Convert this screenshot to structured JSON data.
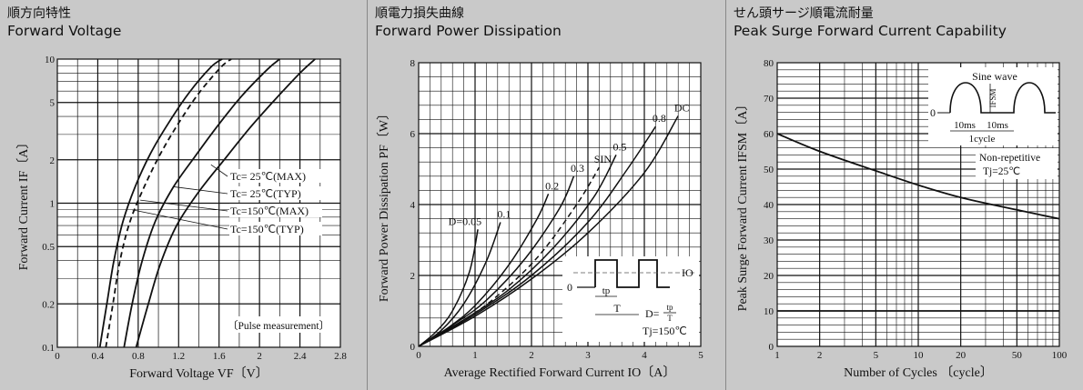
{
  "panels": [
    {
      "title_jp": "順方向特性",
      "title_en": "Forward Voltage"
    },
    {
      "title_jp": "順電力損失曲線",
      "title_en": "Forward Power Dissipation"
    },
    {
      "title_jp": "せん頭サージ順電流耐量",
      "title_en": "Peak Surge Forward Current Capability"
    }
  ],
  "chart_data": [
    {
      "type": "line",
      "title": "Forward Voltage",
      "xlabel": "Forward Voltage  VF〔V〕",
      "ylabel": "Forward Current  IF〔A〕",
      "xlim": [
        0,
        2.8
      ],
      "ylim": [
        0.1,
        10
      ],
      "yscale": "log",
      "xticks": [
        "0",
        "0.4",
        "0.8",
        "1.2",
        "1.6",
        "2",
        "2.4",
        "2.8"
      ],
      "yticks": [
        "0.1",
        "0.2",
        "0.5",
        "1",
        "2",
        "5",
        "10"
      ],
      "annotation": "〔Pulse measurement〕",
      "series": [
        {
          "name": "Tc= 25℃(MAX)",
          "dash": false,
          "points": [
            [
              0.78,
              0.1
            ],
            [
              0.9,
              0.2
            ],
            [
              1.02,
              0.38
            ],
            [
              1.18,
              0.7
            ],
            [
              1.4,
              1.2
            ],
            [
              1.65,
              2
            ],
            [
              1.9,
              3.3
            ],
            [
              2.15,
              5.2
            ],
            [
              2.4,
              8
            ],
            [
              2.55,
              10
            ]
          ]
        },
        {
          "name": "Tc= 25℃(TYP)",
          "dash": false,
          "points": [
            [
              0.66,
              0.1
            ],
            [
              0.74,
              0.2
            ],
            [
              0.84,
              0.4
            ],
            [
              0.97,
              0.75
            ],
            [
              1.15,
              1.3
            ],
            [
              1.36,
              2.1
            ],
            [
              1.58,
              3.4
            ],
            [
              1.82,
              5.5
            ],
            [
              2.08,
              8.5
            ],
            [
              2.2,
              10
            ]
          ]
        },
        {
          "name": "Tc=150℃(MAX)",
          "dash": true,
          "points": [
            [
              0.48,
              0.1
            ],
            [
              0.55,
              0.2
            ],
            [
              0.62,
              0.4
            ],
            [
              0.72,
              0.75
            ],
            [
              0.86,
              1.3
            ],
            [
              1.02,
              2.2
            ],
            [
              1.2,
              3.6
            ],
            [
              1.4,
              5.8
            ],
            [
              1.62,
              8.8
            ],
            [
              1.72,
              10
            ]
          ]
        },
        {
          "name": "Tc=150℃(TYP)",
          "dash": false,
          "points": [
            [
              0.42,
              0.1
            ],
            [
              0.49,
              0.2
            ],
            [
              0.56,
              0.4
            ],
            [
              0.65,
              0.75
            ],
            [
              0.77,
              1.3
            ],
            [
              0.92,
              2.2
            ],
            [
              1.1,
              3.6
            ],
            [
              1.3,
              5.8
            ],
            [
              1.52,
              8.8
            ],
            [
              1.63,
              10
            ]
          ]
        }
      ]
    },
    {
      "type": "line",
      "title": "Forward Power Dissipation",
      "xlabel": "Average Rectified Forward Current  IO〔A〕",
      "ylabel": "Forward Power Dissipation  PF〔W〕",
      "xlim": [
        0,
        5
      ],
      "ylim": [
        0,
        8
      ],
      "xticks": [
        "0",
        "1",
        "2",
        "3",
        "4",
        "5"
      ],
      "yticks": [
        "0",
        "2",
        "4",
        "6",
        "8"
      ],
      "inset": {
        "io_label": "IO",
        "zero_label": "0",
        "tp_label": "tp",
        "T_label": "T",
        "d_label": "D=",
        "d_num": "tp",
        "d_den": "T",
        "tj_label": "Tj=150℃"
      },
      "series": [
        {
          "name": "D=0.05",
          "dash": false,
          "points": [
            [
              0,
              0
            ],
            [
              0.3,
              0.4
            ],
            [
              0.6,
              1
            ],
            [
              0.9,
              2.1
            ],
            [
              1.05,
              3.3
            ]
          ]
        },
        {
          "name": "0.1",
          "dash": false,
          "points": [
            [
              0,
              0
            ],
            [
              0.4,
              0.45
            ],
            [
              0.8,
              1.2
            ],
            [
              1.2,
              2.4
            ],
            [
              1.45,
              3.5
            ]
          ]
        },
        {
          "name": "0.2",
          "dash": false,
          "points": [
            [
              0,
              0
            ],
            [
              0.5,
              0.5
            ],
            [
              1,
              1.15
            ],
            [
              1.6,
              2.3
            ],
            [
              2.1,
              3.6
            ],
            [
              2.3,
              4.3
            ]
          ]
        },
        {
          "name": "0.3",
          "dash": false,
          "points": [
            [
              0,
              0
            ],
            [
              0.6,
              0.6
            ],
            [
              1.2,
              1.3
            ],
            [
              1.9,
              2.5
            ],
            [
              2.5,
              3.9
            ],
            [
              2.75,
              4.8
            ]
          ]
        },
        {
          "name": "SIN",
          "dash": true,
          "points": [
            [
              0,
              0
            ],
            [
              0.6,
              0.55
            ],
            [
              1.3,
              1.3
            ],
            [
              2.1,
              2.5
            ],
            [
              2.8,
              4
            ],
            [
              3.2,
              5.05
            ]
          ]
        },
        {
          "name": "0.5",
          "dash": false,
          "points": [
            [
              0,
              0
            ],
            [
              0.8,
              0.75
            ],
            [
              1.6,
              1.6
            ],
            [
              2.4,
              2.8
            ],
            [
              3.1,
              4.2
            ],
            [
              3.5,
              5.4
            ]
          ]
        },
        {
          "name": "0.8",
          "dash": false,
          "points": [
            [
              0,
              0
            ],
            [
              1,
              0.9
            ],
            [
              2,
              2
            ],
            [
              3,
              3.5
            ],
            [
              3.7,
              5
            ],
            [
              4.2,
              6.2
            ]
          ]
        },
        {
          "name": "DC",
          "dash": false,
          "points": [
            [
              0,
              0
            ],
            [
              1,
              0.85
            ],
            [
              2,
              1.9
            ],
            [
              3,
              3.2
            ],
            [
              4,
              4.9
            ],
            [
              4.6,
              6.5
            ]
          ]
        }
      ]
    },
    {
      "type": "line",
      "title": "Peak Surge Forward Current Capability",
      "xlabel": "Number of Cycles 〔cycle〕",
      "ylabel": "Peak Surge Forward Current  IFSM〔A〕",
      "xlim": [
        1,
        100
      ],
      "xscale": "log",
      "ylim": [
        0,
        80
      ],
      "xticks": [
        "1",
        "2",
        "5",
        "10",
        "20",
        "50",
        "100"
      ],
      "yticks": [
        "0",
        "10",
        "20",
        "30",
        "40",
        "50",
        "60",
        "70",
        "80"
      ],
      "inset": {
        "title": "Sine wave",
        "zero_label": "0",
        "ifsm_label": "IFSM",
        "t1_label": "10ms",
        "t2_label": "10ms",
        "cycle_label": "1cycle",
        "note1": "Non-repetitive",
        "note2": "Tj=25℃"
      },
      "series": [
        {
          "name": "IFSM",
          "dash": false,
          "points": [
            [
              1,
              60
            ],
            [
              2,
              55
            ],
            [
              5,
              49.5
            ],
            [
              10,
              45.5
            ],
            [
              20,
              42
            ],
            [
              50,
              38.5
            ],
            [
              100,
              36
            ]
          ]
        }
      ]
    }
  ]
}
